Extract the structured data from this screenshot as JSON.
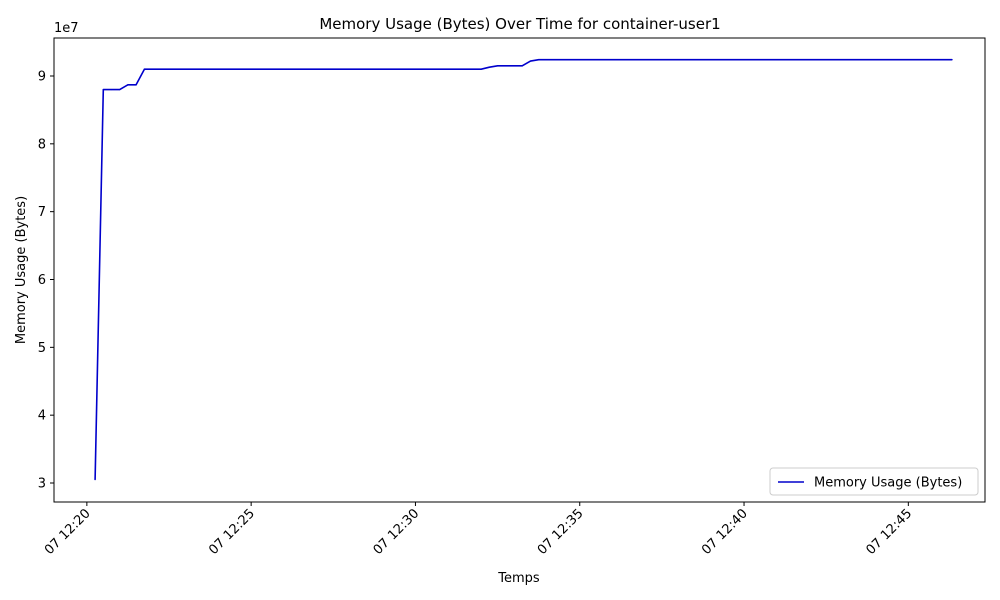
{
  "chart_data": {
    "type": "line",
    "title": "Memory Usage (Bytes) Over Time for container-user1",
    "xlabel": "Temps",
    "ylabel": "Memory Usage (Bytes)",
    "y_offset_label": "1e7",
    "y_multiplier": 10000000,
    "xlim": [
      "07 12:19:00",
      "07 12:47:20"
    ],
    "ylim": [
      2.72,
      9.56
    ],
    "x_ticks": [
      {
        "value": "07 12:20:00",
        "label": "07 12:20"
      },
      {
        "value": "07 12:25:00",
        "label": "07 12:25"
      },
      {
        "value": "07 12:30:00",
        "label": "07 12:30"
      },
      {
        "value": "07 12:35:00",
        "label": "07 12:35"
      },
      {
        "value": "07 12:40:00",
        "label": "07 12:40"
      },
      {
        "value": "07 12:45:00",
        "label": "07 12:45"
      }
    ],
    "y_ticks": [
      {
        "value": 3,
        "label": "3"
      },
      {
        "value": 4,
        "label": "4"
      },
      {
        "value": 5,
        "label": "5"
      },
      {
        "value": 6,
        "label": "6"
      },
      {
        "value": 7,
        "label": "7"
      },
      {
        "value": 8,
        "label": "8"
      },
      {
        "value": 9,
        "label": "9"
      }
    ],
    "grid": false,
    "legend_position": "lower-right",
    "series": [
      {
        "name": "Memory Usage (Bytes)",
        "color": "#0000cc",
        "x": [
          "07 12:20:15",
          "07 12:20:30",
          "07 12:20:45",
          "07 12:21:00",
          "07 12:21:15",
          "07 12:21:30",
          "07 12:21:45",
          "07 12:22:00",
          "07 12:25:00",
          "07 12:30:00",
          "07 12:32:00",
          "07 12:32:15",
          "07 12:32:30",
          "07 12:33:00",
          "07 12:33:15",
          "07 12:33:30",
          "07 12:33:45",
          "07 12:34:00",
          "07 12:40:00",
          "07 12:46:20"
        ],
        "y": [
          3.05,
          8.8,
          8.8,
          8.8,
          8.87,
          8.87,
          9.1,
          9.1,
          9.1,
          9.1,
          9.1,
          9.13,
          9.15,
          9.15,
          9.15,
          9.22,
          9.24,
          9.24,
          9.24,
          9.24
        ]
      }
    ]
  }
}
